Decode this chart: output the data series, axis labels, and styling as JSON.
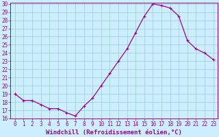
{
  "x": [
    0,
    1,
    2,
    3,
    4,
    5,
    6,
    7,
    8,
    9,
    10,
    11,
    12,
    13,
    14,
    15,
    16,
    17,
    18,
    19,
    20,
    21,
    22,
    23
  ],
  "y": [
    19.0,
    18.2,
    18.2,
    17.7,
    17.2,
    17.2,
    16.7,
    16.3,
    17.5,
    18.5,
    20.0,
    21.5,
    23.0,
    24.5,
    26.5,
    28.5,
    30.0,
    29.8,
    29.5,
    28.5,
    25.5,
    24.5,
    24.0,
    23.2
  ],
  "line_color": "#990099",
  "marker_color": "#990099",
  "bg_color": "#cceeff",
  "grid_color": "#99cccc",
  "xlabel": "Windchill (Refroidissement éolien,°C)",
  "ylim_min": 16,
  "ylim_max": 30,
  "xlim_min": -0.5,
  "xlim_max": 23.5,
  "yticks": [
    16,
    17,
    18,
    19,
    20,
    21,
    22,
    23,
    24,
    25,
    26,
    27,
    28,
    29,
    30
  ],
  "xticks": [
    0,
    1,
    2,
    3,
    4,
    5,
    6,
    7,
    8,
    9,
    10,
    11,
    12,
    13,
    14,
    15,
    16,
    17,
    18,
    19,
    20,
    21,
    22,
    23
  ],
  "tick_color": "#990099",
  "label_fontsize": 6.5,
  "tick_fontsize": 5.5,
  "linewidth": 0.9,
  "markersize": 2.2
}
